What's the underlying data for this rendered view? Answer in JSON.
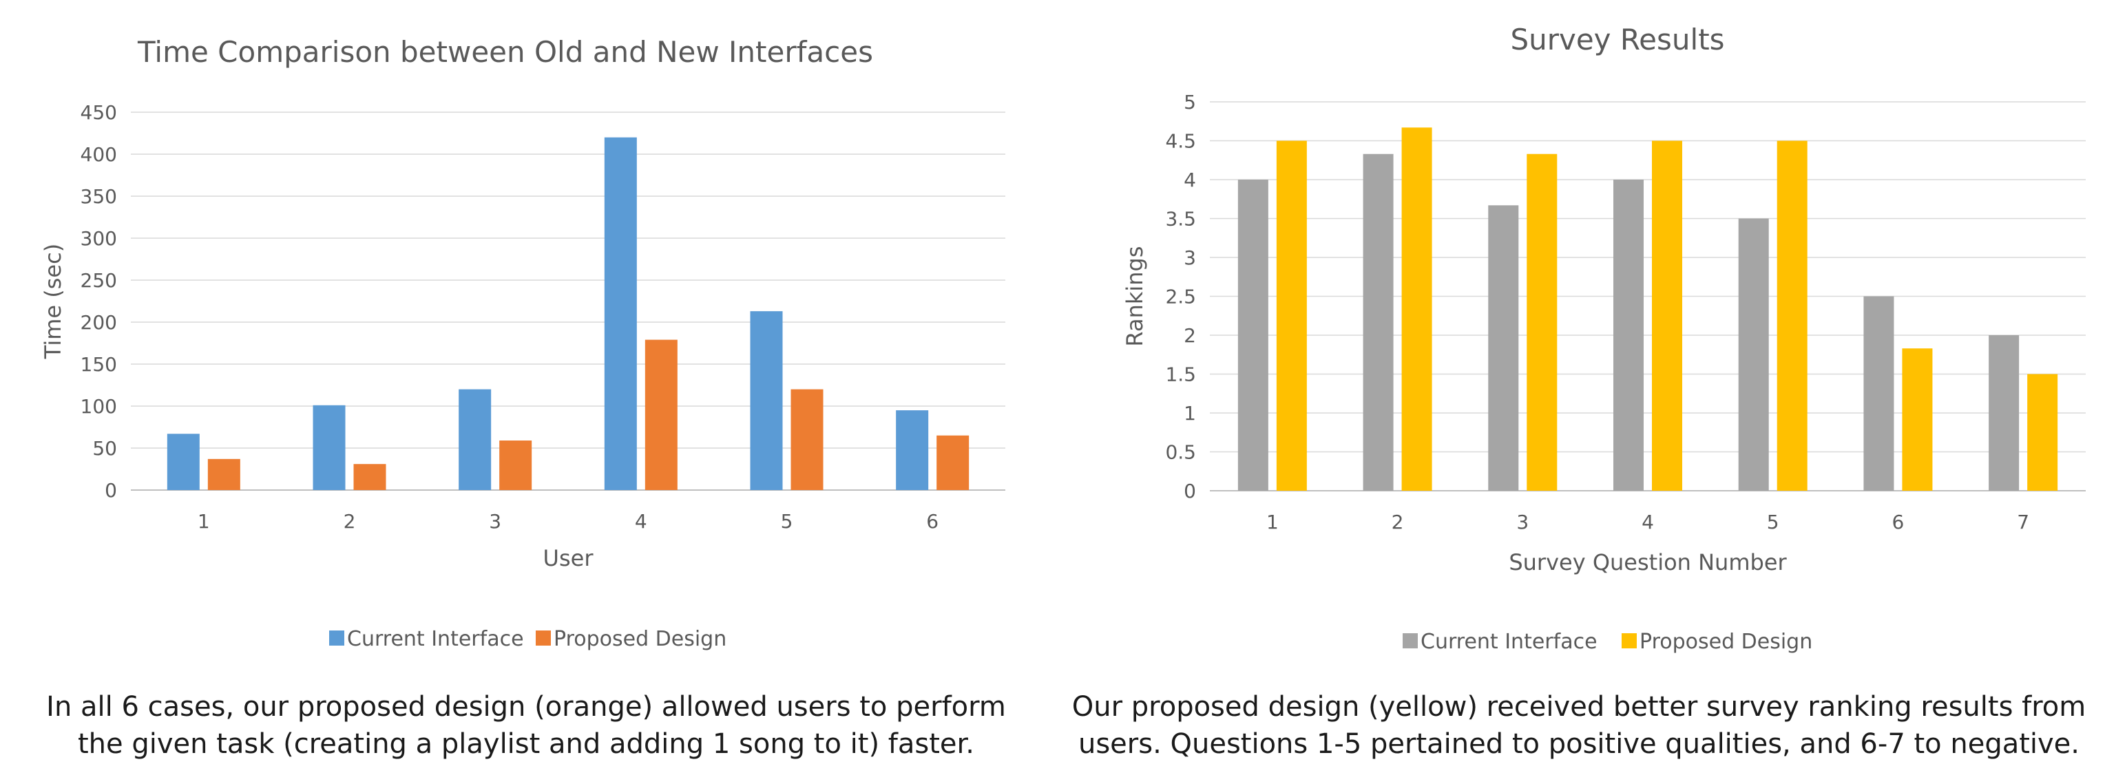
{
  "chart_data": [
    {
      "type": "bar",
      "title": "Time Comparison between Old and New Interfaces",
      "xlabel": "User",
      "ylabel": "Time (sec)",
      "categories": [
        "1",
        "2",
        "3",
        "4",
        "5",
        "6"
      ],
      "ylim": [
        0,
        450
      ],
      "yticks": [
        "0",
        "50",
        "100",
        "150",
        "200",
        "250",
        "300",
        "350",
        "400",
        "450"
      ],
      "grid": true,
      "legend_position": "bottom",
      "series": [
        {
          "name": "Current Interface",
          "color": "#5B9BD5",
          "values": [
            67,
            101,
            120,
            420,
            213,
            95
          ]
        },
        {
          "name": "Proposed Design",
          "color": "#ED7D31",
          "values": [
            37,
            31,
            59,
            179,
            120,
            65
          ]
        }
      ]
    },
    {
      "type": "bar",
      "title": "Survey Results",
      "xlabel": "Survey Question Number",
      "ylabel": "Rankings",
      "categories": [
        "1",
        "2",
        "3",
        "4",
        "5",
        "6",
        "7"
      ],
      "ylim": [
        0,
        5
      ],
      "yticks": [
        "0",
        "0.5",
        "1",
        "1.5",
        "2",
        "2.5",
        "3",
        "3.5",
        "4",
        "4.5",
        "5"
      ],
      "grid": true,
      "legend_position": "bottom",
      "series": [
        {
          "name": "Current Interface",
          "color": "#A5A5A5",
          "values": [
            4.0,
            4.33,
            3.67,
            4.0,
            3.5,
            2.5,
            2.0
          ]
        },
        {
          "name": "Proposed Design",
          "color": "#FFC000",
          "values": [
            4.5,
            4.67,
            4.33,
            4.5,
            4.5,
            1.83,
            1.5
          ]
        }
      ]
    }
  ],
  "captions": {
    "left": [
      "In all 6 cases, our proposed design (orange) allowed users to perform",
      "the given task (creating a playlist and adding 1 song to it) faster."
    ],
    "right": [
      "Our proposed design (yellow) received better survey ranking results from",
      "users. Questions 1-5 pertained to positive qualities, and 6-7 to negative."
    ]
  }
}
